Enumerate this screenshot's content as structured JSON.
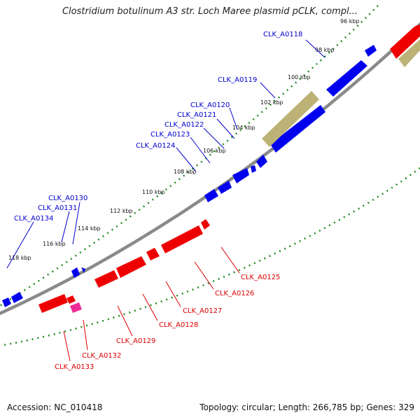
{
  "header": {
    "title": "Clostridium botulinum A3 str. Loch Maree plasmid pCLK, compl..."
  },
  "footer": {
    "accession": "Accession: NC_010418",
    "topology": "Topology: circular; Length: 266,785 bp; Genes: 329"
  },
  "ticks": [
    "98 kbp",
    "100 kbp",
    "102 kbp",
    "104 kbp",
    "106 kbp",
    "108 kbp",
    "110 kbp",
    "112 kbp",
    "114 kbp",
    "116 kbp",
    "118 kbp"
  ],
  "partial_tick": "96 kbp",
  "forward_genes": [
    "CLK_A0118",
    "CLK_A0119",
    "CLK_A0120",
    "CLK_A0121",
    "CLK_A0122",
    "CLK_A0123",
    "CLK_A0124",
    "CLK_A0130",
    "CLK_A0131",
    "CLK_A0134"
  ],
  "reverse_genes": [
    "CLK_A0125",
    "CLK_A0126",
    "CLK_A0127",
    "CLK_A0128",
    "CLK_A0129",
    "CLK_A0132",
    "CLK_A0133"
  ],
  "colors": {
    "forward": "#0000ee",
    "reverse": "#ee0000",
    "other": "#bdb276",
    "pseudo": "#ee2a99",
    "backbone": "#888888",
    "tick": "#228b22"
  }
}
